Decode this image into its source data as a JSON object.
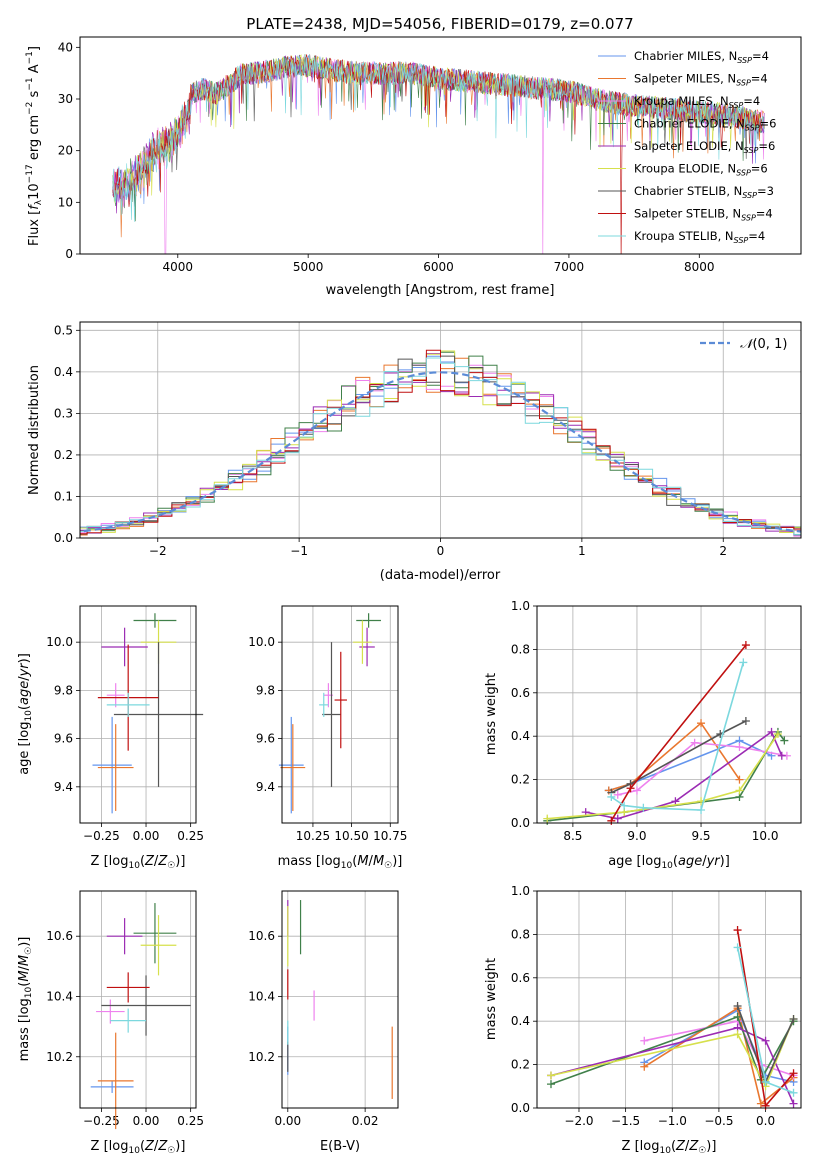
{
  "colors": [
    "#6495ED",
    "#E9772F",
    "#EE82EE",
    "#40804A",
    "#9B2BB3",
    "#D6E04C",
    "#555555",
    "#C01010",
    "#7CD8DE"
  ],
  "chart_data": [
    {
      "id": "spectrum",
      "type": "line",
      "title": "PLATE=2438, MJD=54056, FIBERID=0179, z=0.077",
      "xlabel": "wavelength [Angstrom, rest frame]",
      "ylabel": "Flux [f_λ 10^-17 erg cm^-2 s^-1 A^-1]",
      "xlim": [
        3250,
        8780
      ],
      "ylim": [
        0,
        42
      ],
      "xticks": [
        4000,
        5000,
        6000,
        7000,
        8000
      ],
      "yticks": [
        0,
        10,
        20,
        30,
        40
      ],
      "legend_position": "upper right",
      "series": [
        {
          "name": "Chabrier MILES, N_SSP=4"
        },
        {
          "name": "Salpeter MILES, N_SSP=4"
        },
        {
          "name": "Kroupa MILES, N_SSP=4"
        },
        {
          "name": "Chabrier ELODIE, N_SSP=6"
        },
        {
          "name": "Salpeter ELODIE, N_SSP=6"
        },
        {
          "name": "Kroupa ELODIE, N_SSP=6"
        },
        {
          "name": "Chabrier STELIB, N_SSP=3"
        },
        {
          "name": "Salpeter STELIB, N_SSP=4"
        },
        {
          "name": "Kroupa STELIB, N_SSP=4"
        }
      ],
      "envelope": {
        "x": [
          3500,
          3600,
          3700,
          3800,
          3900,
          4000,
          4100,
          4200,
          4300,
          4400,
          4500,
          4600,
          4800,
          5000,
          5200,
          5400,
          5600,
          5800,
          6000,
          6200,
          6400,
          6600,
          6800,
          7000,
          7200,
          7400,
          7600,
          7800,
          8000,
          8200,
          8400,
          8500
        ],
        "y": [
          15,
          16,
          18,
          22,
          23,
          26,
          31,
          32,
          31,
          33,
          35,
          35,
          36,
          36.5,
          35.5,
          35,
          35,
          35,
          34,
          33.5,
          33,
          32.5,
          32,
          31.5,
          30,
          29,
          28.5,
          28,
          27.5,
          27,
          26,
          25.5
        ]
      }
    },
    {
      "id": "residuals",
      "type": "histogram",
      "xlabel": "(data-model)/error",
      "ylabel": "Normed distribution",
      "xlim": [
        -2.55,
        2.55
      ],
      "ylim": [
        0,
        0.52
      ],
      "xticks": [
        -2,
        -1,
        0,
        1,
        2
      ],
      "yticks": [
        0.0,
        0.1,
        0.2,
        0.3,
        0.4,
        0.5
      ],
      "gaussian_label": "N(0,1)",
      "bin_width": 0.1
    },
    {
      "id": "age-vs-Z",
      "type": "scatter",
      "xlabel": "Z [log10(Z/Z☉)]",
      "ylabel": "age [log10(age/yr)]",
      "xlim": [
        -0.37,
        0.28
      ],
      "ylim": [
        9.25,
        10.15
      ],
      "xticks": [
        -0.25,
        0.0,
        0.25
      ],
      "yticks": [
        9.4,
        9.6,
        9.8,
        10.0
      ],
      "points": [
        {
          "x": -0.19,
          "y": 9.49,
          "xerr": 0.11,
          "yerr": 0.2
        },
        {
          "x": -0.17,
          "y": 9.48,
          "xerr": 0.1,
          "yerr": 0.18
        },
        {
          "x": -0.17,
          "y": 9.78,
          "xerr": 0.05,
          "yerr": 0.05
        },
        {
          "x": 0.05,
          "y": 10.09,
          "xerr": 0.12,
          "yerr": 0.03
        },
        {
          "x": -0.12,
          "y": 9.98,
          "xerr": 0.13,
          "yerr": 0.08
        },
        {
          "x": 0.07,
          "y": 10.0,
          "xerr": 0.1,
          "yerr": 0.09
        },
        {
          "x": 0.07,
          "y": 9.7,
          "xerr": 0.25,
          "yerr": 0.3
        },
        {
          "x": -0.1,
          "y": 9.77,
          "xerr": 0.17,
          "yerr": 0.22
        },
        {
          "x": -0.1,
          "y": 9.74,
          "xerr": 0.12,
          "yerr": 0.05
        }
      ]
    },
    {
      "id": "age-vs-mass",
      "type": "scatter",
      "xlabel": "mass [log10(M/M☉)]",
      "ylabel": "",
      "xlim": [
        10.05,
        10.8
      ],
      "ylim": [
        9.25,
        10.15
      ],
      "xticks": [
        10.25,
        10.5,
        10.75
      ],
      "yticks": [
        9.4,
        9.6,
        9.8,
        10.0
      ],
      "points": [
        {
          "x": 10.11,
          "y": 9.49,
          "xerr": 0.08,
          "yerr": 0.2
        },
        {
          "x": 10.12,
          "y": 9.48,
          "xerr": 0.08,
          "yerr": 0.18
        },
        {
          "x": 10.35,
          "y": 9.78,
          "xerr": 0.03,
          "yerr": 0.05
        },
        {
          "x": 10.61,
          "y": 10.09,
          "xerr": 0.08,
          "yerr": 0.03
        },
        {
          "x": 10.6,
          "y": 9.98,
          "xerr": 0.05,
          "yerr": 0.08
        },
        {
          "x": 10.57,
          "y": 10.0,
          "xerr": 0.06,
          "yerr": 0.09
        },
        {
          "x": 10.37,
          "y": 9.7,
          "xerr": 0.06,
          "yerr": 0.3
        },
        {
          "x": 10.43,
          "y": 9.76,
          "xerr": 0.04,
          "yerr": 0.2
        },
        {
          "x": 10.32,
          "y": 9.74,
          "xerr": 0.03,
          "yerr": 0.05
        }
      ]
    },
    {
      "id": "massweight-vs-age",
      "type": "line",
      "xlabel": "age [log10(age/yr)]",
      "ylabel": "mass weight",
      "xlim": [
        8.22,
        10.28
      ],
      "ylim": [
        0,
        1.0
      ],
      "xticks": [
        8.5,
        9.0,
        9.5,
        10.0
      ],
      "yticks": [
        0.0,
        0.2,
        0.4,
        0.6,
        0.8,
        1.0
      ],
      "series": [
        {
          "x": [
            8.78,
            8.95,
            9.8,
            10.05
          ],
          "y": [
            0.15,
            0.18,
            0.38,
            0.31
          ]
        },
        {
          "x": [
            8.78,
            8.95,
            9.5,
            9.8
          ],
          "y": [
            0.15,
            0.18,
            0.46,
            0.2
          ]
        },
        {
          "x": [
            8.85,
            9.0,
            9.45,
            9.8,
            10.17
          ],
          "y": [
            0.13,
            0.15,
            0.37,
            0.35,
            0.31
          ]
        },
        {
          "x": [
            8.3,
            8.9,
            9.8,
            10.1,
            10.15
          ],
          "y": [
            0.01,
            0.05,
            0.12,
            0.42,
            0.38
          ]
        },
        {
          "x": [
            8.6,
            8.85,
            9.3,
            10.05,
            10.13
          ],
          "y": [
            0.05,
            0.02,
            0.1,
            0.42,
            0.31
          ]
        },
        {
          "x": [
            8.3,
            8.9,
            9.5,
            9.8,
            10.1
          ],
          "y": [
            0.02,
            0.05,
            0.1,
            0.15,
            0.41
          ]
        },
        {
          "x": [
            8.8,
            8.95,
            9.65,
            9.85
          ],
          "y": [
            0.14,
            0.18,
            0.41,
            0.47
          ]
        },
        {
          "x": [
            8.8,
            8.95,
            9.85
          ],
          "y": [
            0.01,
            0.16,
            0.82
          ]
        },
        {
          "x": [
            8.8,
            8.9,
            9.05,
            9.5,
            9.83
          ],
          "y": [
            0.12,
            0.08,
            0.07,
            0.06,
            0.74
          ]
        }
      ]
    },
    {
      "id": "mass-vs-Z",
      "type": "scatter",
      "xlabel": "Z [log10(Z/Z☉)]",
      "ylabel": "mass [log10(M/M☉)]",
      "xlim": [
        -0.37,
        0.28
      ],
      "ylim": [
        10.03,
        10.75
      ],
      "xticks": [
        -0.25,
        0.0,
        0.25
      ],
      "yticks": [
        10.2,
        10.4,
        10.6
      ],
      "points": [
        {
          "x": -0.19,
          "y": 10.1,
          "xerr": 0.12,
          "yerr": 0.02
        },
        {
          "x": -0.17,
          "y": 10.12,
          "xerr": 0.1,
          "yerr": 0.16
        },
        {
          "x": -0.2,
          "y": 10.35,
          "xerr": 0.08,
          "yerr": 0.04
        },
        {
          "x": 0.05,
          "y": 10.61,
          "xerr": 0.12,
          "yerr": 0.1
        },
        {
          "x": -0.12,
          "y": 10.6,
          "xerr": 0.1,
          "yerr": 0.06
        },
        {
          "x": 0.07,
          "y": 10.57,
          "xerr": 0.1,
          "yerr": 0.1
        },
        {
          "x": 0.0,
          "y": 10.37,
          "xerr": 0.25,
          "yerr": 0.1
        },
        {
          "x": -0.1,
          "y": 10.43,
          "xerr": 0.12,
          "yerr": 0.05
        },
        {
          "x": -0.1,
          "y": 10.32,
          "xerr": 0.1,
          "yerr": 0.04
        }
      ]
    },
    {
      "id": "mass-vs-EBV",
      "type": "scatter",
      "xlabel": "E(B-V)",
      "ylabel": "",
      "xlim": [
        -0.0015,
        0.0285
      ],
      "ylim": [
        10.03,
        10.75
      ],
      "xticks": [
        0.0,
        0.02
      ],
      "yticks": [
        10.2,
        10.4,
        10.6
      ],
      "points": [
        {
          "x": 0.0,
          "y": 10.22,
          "xerr": 0,
          "yerr": 0.08
        },
        {
          "x": 0.027,
          "y": 10.18,
          "xerr": 0,
          "yerr": 0.12
        },
        {
          "x": 0.0068,
          "y": 10.37,
          "xerr": 0,
          "yerr": 0.05
        },
        {
          "x": 0.0033,
          "y": 10.63,
          "xerr": 0,
          "yerr": 0.09
        },
        {
          "x": 0.0,
          "y": 10.66,
          "xerr": 0,
          "yerr": 0.06
        },
        {
          "x": 0.0,
          "y": 10.6,
          "xerr": 0,
          "yerr": 0.1
        },
        {
          "x": 0.0,
          "y": 10.2,
          "xerr": 0,
          "yerr": 0.05
        },
        {
          "x": 0.0,
          "y": 10.44,
          "xerr": 0,
          "yerr": 0.05
        },
        {
          "x": 0.0,
          "y": 10.28,
          "xerr": 0,
          "yerr": 0.04
        }
      ]
    },
    {
      "id": "massweight-vs-Z",
      "type": "line",
      "xlabel": "Z [log10(Z/Z☉)]",
      "ylabel": "mass weight",
      "xlim": [
        -2.45,
        0.38
      ],
      "ylim": [
        0,
        1.0
      ],
      "xticks": [
        -2.0,
        -1.5,
        -1.0,
        -0.5,
        0.0
      ],
      "yticks": [
        0.0,
        0.2,
        0.4,
        0.6,
        0.8,
        1.0
      ],
      "series": [
        {
          "x": [
            -1.3,
            -0.3,
            0.0,
            0.3
          ],
          "y": [
            0.21,
            0.45,
            0.15,
            0.12
          ]
        },
        {
          "x": [
            -1.3,
            -0.3,
            -0.05,
            0.3
          ],
          "y": [
            0.19,
            0.46,
            0.02,
            0.14
          ]
        },
        {
          "x": [
            -1.3,
            -0.3,
            -0.05,
            0.3
          ],
          "y": [
            0.31,
            0.4,
            0.2,
            0.15
          ]
        },
        {
          "x": [
            -2.3,
            -0.3,
            -0.05,
            0.3
          ],
          "y": [
            0.11,
            0.42,
            0.13,
            0.4
          ]
        },
        {
          "x": [
            -2.3,
            -0.3,
            0.0,
            0.3
          ],
          "y": [
            0.15,
            0.37,
            0.31,
            0.02
          ]
        },
        {
          "x": [
            -2.3,
            -0.3,
            0.0,
            0.3
          ],
          "y": [
            0.15,
            0.34,
            0.1,
            0.41
          ]
        },
        {
          "x": [
            -0.3,
            0.0,
            0.3
          ],
          "y": [
            0.47,
            0.12,
            0.41
          ]
        },
        {
          "x": [
            -0.3,
            0.0,
            0.3
          ],
          "y": [
            0.82,
            0.01,
            0.16
          ]
        },
        {
          "x": [
            -0.3,
            0.0,
            0.3
          ],
          "y": [
            0.74,
            0.12,
            0.07
          ]
        }
      ]
    }
  ]
}
